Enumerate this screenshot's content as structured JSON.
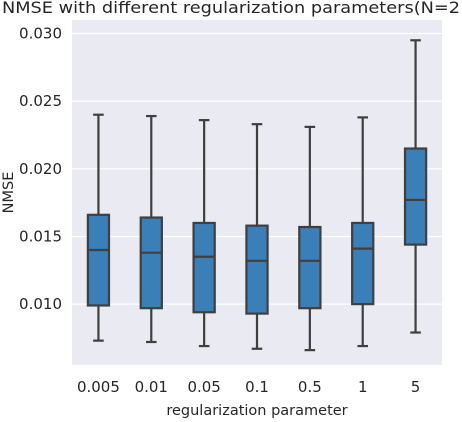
{
  "chart_data": {
    "type": "box",
    "title": "NMSE with different regularization parameters(N=2",
    "xlabel": "regularization parameter",
    "ylabel": "NMSE",
    "categories": [
      "0.005",
      "0.01",
      "0.05",
      "0.1",
      "0.5",
      "1",
      "5"
    ],
    "boxes": [
      {
        "whisker_low": 0.0073,
        "q1": 0.0099,
        "median": 0.014,
        "q3": 0.0166,
        "whisker_high": 0.024
      },
      {
        "whisker_low": 0.0072,
        "q1": 0.0097,
        "median": 0.0138,
        "q3": 0.0164,
        "whisker_high": 0.0239
      },
      {
        "whisker_low": 0.0069,
        "q1": 0.0094,
        "median": 0.0135,
        "q3": 0.016,
        "whisker_high": 0.0236
      },
      {
        "whisker_low": 0.0067,
        "q1": 0.0093,
        "median": 0.0132,
        "q3": 0.0158,
        "whisker_high": 0.0233
      },
      {
        "whisker_low": 0.0066,
        "q1": 0.0097,
        "median": 0.0132,
        "q3": 0.0157,
        "whisker_high": 0.0231
      },
      {
        "whisker_low": 0.0069,
        "q1": 0.01,
        "median": 0.0141,
        "q3": 0.016,
        "whisker_high": 0.0238
      },
      {
        "whisker_low": 0.0079,
        "q1": 0.0144,
        "median": 0.0177,
        "q3": 0.0215,
        "whisker_high": 0.0295
      }
    ],
    "yticks": [
      "0.010",
      "0.015",
      "0.020",
      "0.025",
      "0.030"
    ],
    "ytick_values": [
      0.01,
      0.015,
      0.02,
      0.025,
      0.03
    ],
    "ylim": [
      0.0055,
      0.031
    ],
    "grid": true,
    "style": {
      "background": "#eaeaf2",
      "grid_color": "#ffffff",
      "box_fill": "#3a7fb8",
      "line_color": "#3f3f3f",
      "text_color": "#262626"
    }
  }
}
